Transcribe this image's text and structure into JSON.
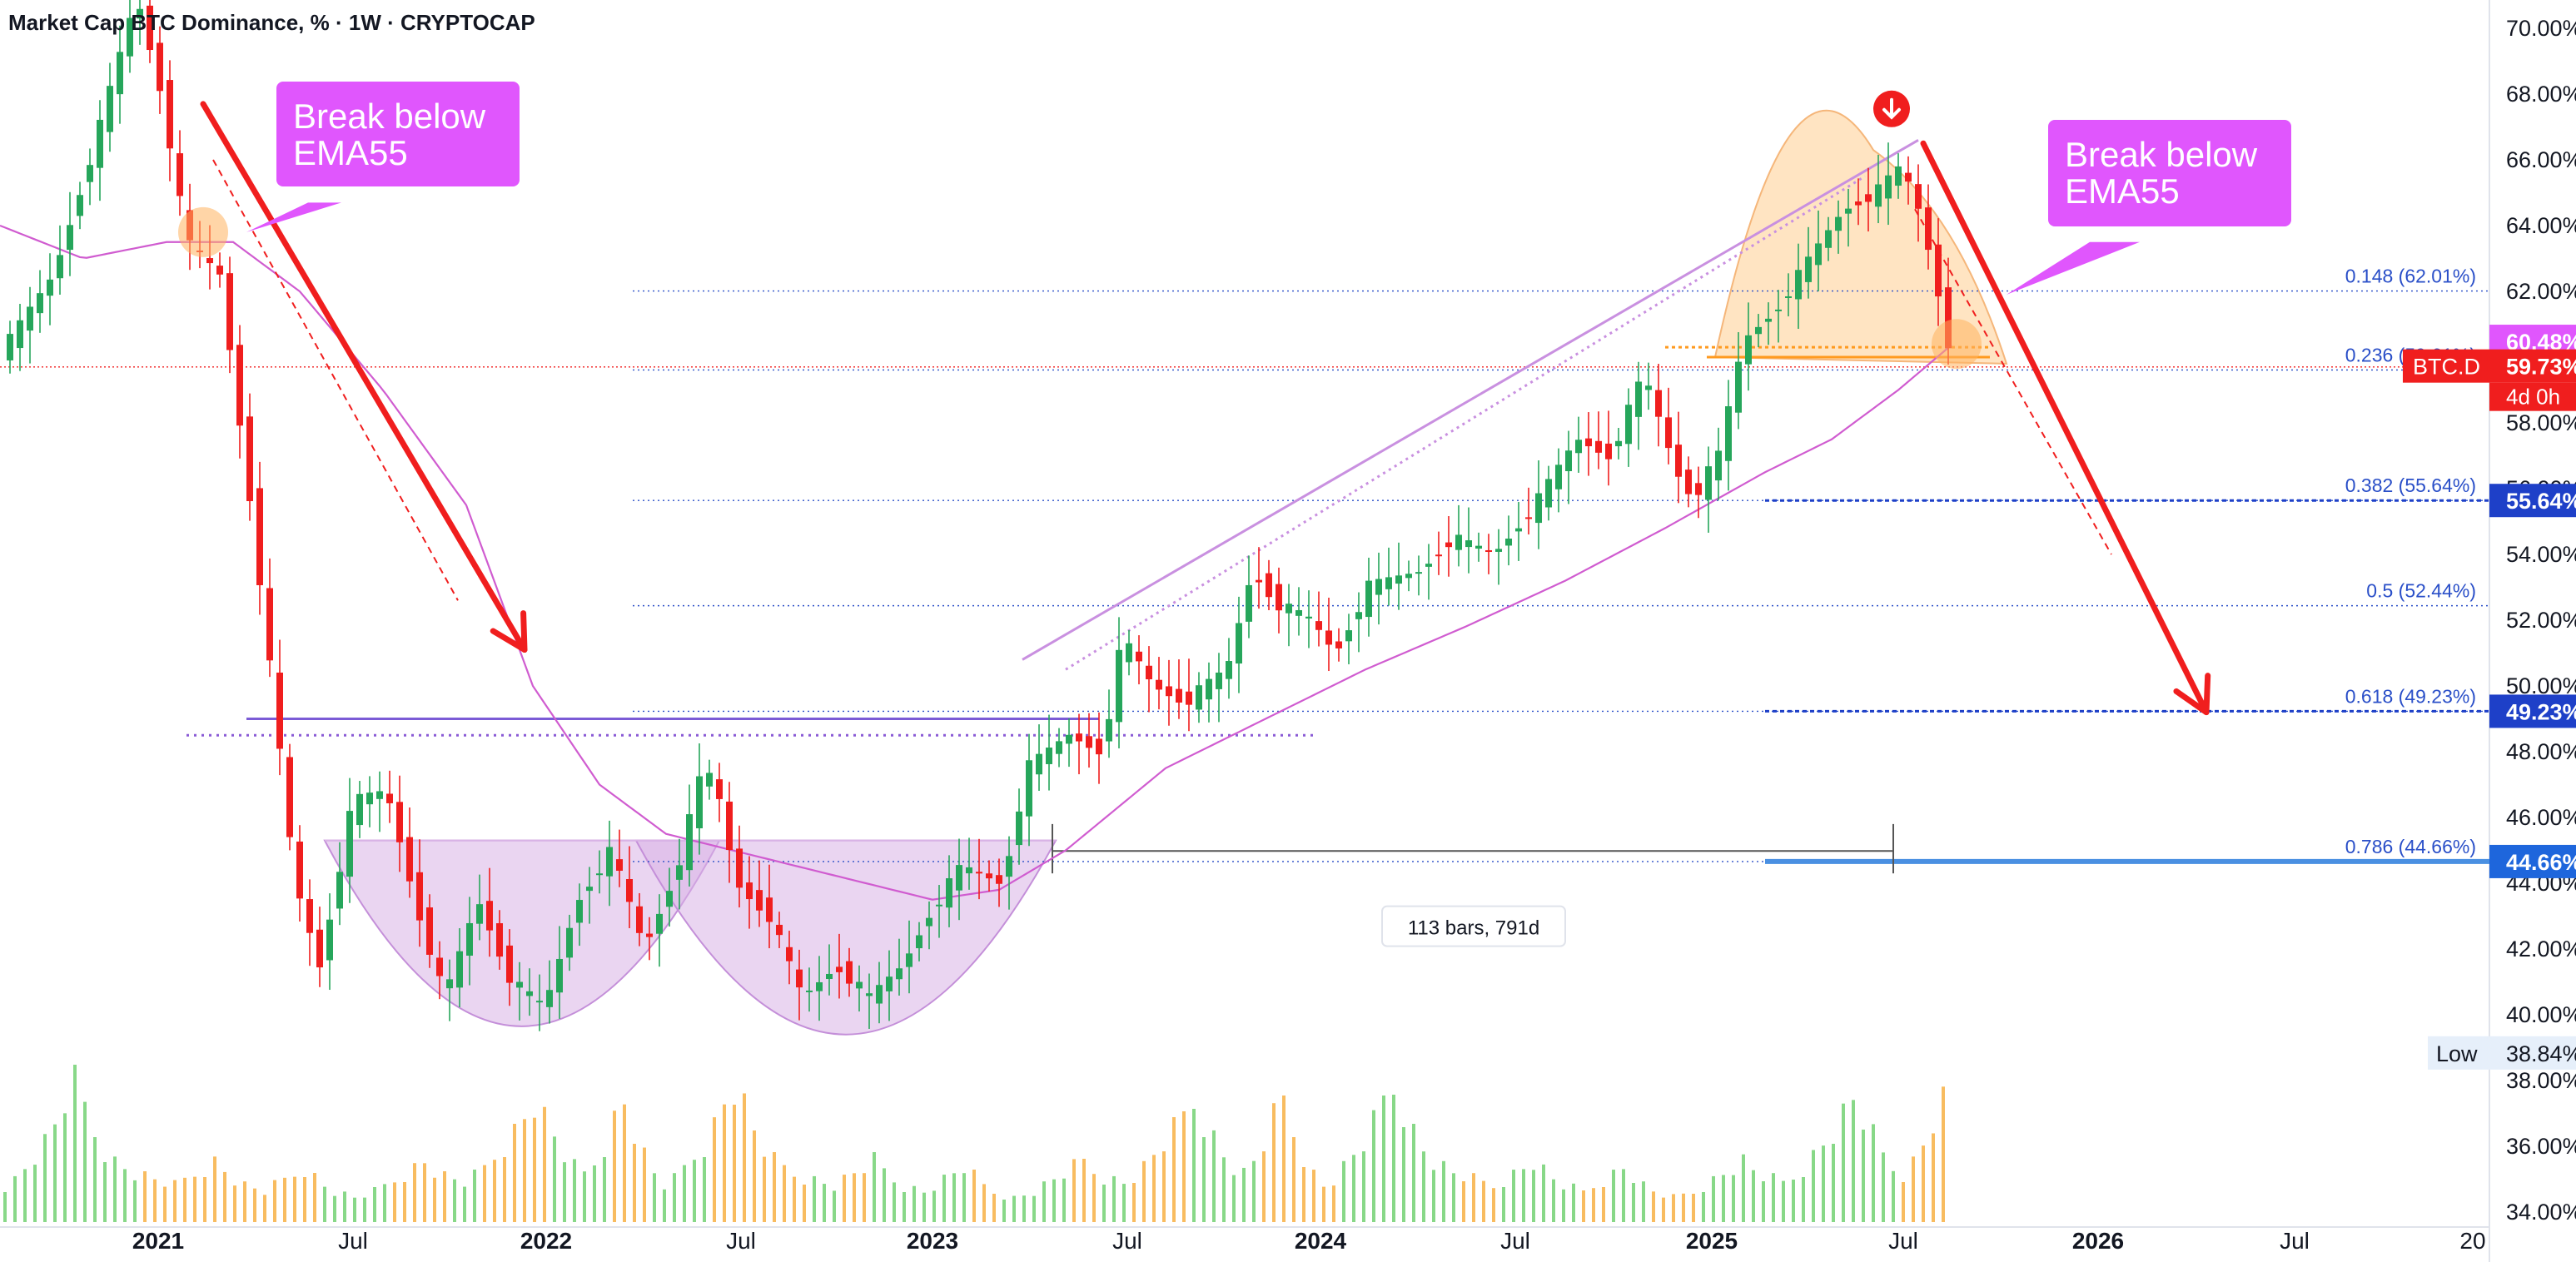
{
  "header": {
    "title": "Market Cap BTC Dominance, % · 1W · CRYPTOCAP"
  },
  "chart_data": {
    "type": "candlestick",
    "symbol": "BTC.D",
    "interval": "1W",
    "y_axis_ticks": [
      "70.00%",
      "68.00%",
      "66.00%",
      "64.00%",
      "62.00%",
      "60.00%",
      "58.00%",
      "56.00%",
      "54.00%",
      "52.00%",
      "50.00%",
      "48.00%",
      "46.00%",
      "44.00%",
      "42.00%",
      "40.00%",
      "38.00%",
      "36.00%",
      "34.00%"
    ],
    "ylim": [
      33.0,
      71.0
    ],
    "x_axis_ticks": [
      "2021",
      "Jul",
      "2022",
      "Jul",
      "2023",
      "Jul",
      "2024",
      "Jul",
      "2025",
      "Jul",
      "2026",
      "Jul",
      "20"
    ],
    "price_path": [
      [
        0,
        60.2
      ],
      [
        30,
        62.5
      ],
      [
        55,
        66.5
      ],
      [
        80,
        71.0
      ],
      [
        95,
        68.0
      ],
      [
        110,
        63.5
      ],
      [
        130,
        62.5
      ],
      [
        150,
        55.0
      ],
      [
        175,
        44.0
      ],
      [
        190,
        41.5
      ],
      [
        210,
        46.5
      ],
      [
        230,
        46.8
      ],
      [
        250,
        43.0
      ],
      [
        265,
        40.5
      ],
      [
        285,
        43.5
      ],
      [
        305,
        41.0
      ],
      [
        325,
        40.2
      ],
      [
        345,
        43.5
      ],
      [
        365,
        45.0
      ],
      [
        385,
        42.0
      ],
      [
        405,
        44.5
      ],
      [
        420,
        47.5
      ],
      [
        428,
        47.0
      ],
      [
        440,
        44.0
      ],
      [
        460,
        43.0
      ],
      [
        480,
        40.5
      ],
      [
        500,
        41.5
      ],
      [
        520,
        40.5
      ],
      [
        540,
        41.5
      ],
      [
        555,
        43.0
      ],
      [
        575,
        44.5
      ],
      [
        600,
        44.0
      ],
      [
        615,
        47.5
      ],
      [
        640,
        48.5
      ],
      [
        660,
        48.0
      ],
      [
        672,
        51.5
      ],
      [
        690,
        50.0
      ],
      [
        710,
        49.5
      ],
      [
        735,
        50.5
      ],
      [
        750,
        53.5
      ],
      [
        765,
        52.5
      ],
      [
        785,
        52.0
      ],
      [
        800,
        51.0
      ],
      [
        820,
        53.0
      ],
      [
        850,
        53.5
      ],
      [
        870,
        54.5
      ],
      [
        895,
        54.0
      ],
      [
        920,
        55.5
      ],
      [
        945,
        57.5
      ],
      [
        965,
        57.0
      ],
      [
        985,
        59.5
      ],
      [
        1005,
        56.5
      ],
      [
        1015,
        55.7
      ],
      [
        1030,
        57.0
      ],
      [
        1045,
        60.5
      ],
      [
        1065,
        61.5
      ],
      [
        1085,
        63.0
      ],
      [
        1105,
        64.5
      ],
      [
        1125,
        65.0
      ],
      [
        1140,
        65.8
      ],
      [
        1150,
        64.5
      ],
      [
        1160,
        62.5
      ],
      [
        1167,
        60.5
      ],
      [
        1175,
        59.7
      ]
    ],
    "ema55_path": [
      [
        0,
        64.0
      ],
      [
        50,
        63.0
      ],
      [
        100,
        63.5
      ],
      [
        140,
        63.5
      ],
      [
        180,
        62.0
      ],
      [
        230,
        59.0
      ],
      [
        280,
        55.5
      ],
      [
        320,
        50.0
      ],
      [
        360,
        47.0
      ],
      [
        400,
        45.5
      ],
      [
        440,
        45.0
      ],
      [
        480,
        44.5
      ],
      [
        520,
        44.0
      ],
      [
        560,
        43.5
      ],
      [
        600,
        43.8
      ],
      [
        640,
        45.0
      ],
      [
        700,
        47.5
      ],
      [
        760,
        49.0
      ],
      [
        820,
        50.5
      ],
      [
        880,
        51.8
      ],
      [
        940,
        53.2
      ],
      [
        1000,
        54.8
      ],
      [
        1060,
        56.5
      ],
      [
        1100,
        57.5
      ],
      [
        1140,
        59.0
      ],
      [
        1175,
        60.5
      ]
    ],
    "volume_profile": [
      12,
      14,
      18,
      22,
      26,
      32,
      40,
      45,
      38,
      30,
      24,
      20,
      18,
      16,
      15,
      14,
      13,
      12,
      14,
      16,
      18,
      20,
      17,
      14,
      12,
      11,
      10,
      12,
      14,
      16,
      18,
      15,
      12,
      10,
      9,
      8,
      9,
      10,
      12,
      14,
      16,
      18,
      20,
      17,
      15,
      14,
      13,
      15,
      18,
      22,
      26,
      30,
      35,
      40,
      34,
      28,
      22,
      18,
      16,
      20,
      26,
      34,
      40,
      30,
      22,
      16
    ],
    "fib_levels": [
      {
        "label": "0.148 (62.01%)",
        "value": 62.01
      },
      {
        "label": "0.236 (59.61%)",
        "value": 59.61
      },
      {
        "label": "0.382 (55.64%)",
        "value": 55.64
      },
      {
        "label": "0.5 (52.44%)",
        "value": 52.44
      },
      {
        "label": "0.618 (49.23%)",
        "value": 49.23
      },
      {
        "label": "0.786 (44.66%)",
        "value": 44.66
      }
    ],
    "price_tags": [
      {
        "text": "60.48%",
        "value": 60.48,
        "color": "#e056fd"
      },
      {
        "text": "59.73%",
        "value": 59.73,
        "color": "#f01e1e"
      },
      {
        "text": "55.64%",
        "value": 55.64,
        "color": "#1e40c8"
      },
      {
        "text": "49.23%",
        "value": 49.23,
        "color": "#1e40c8"
      },
      {
        "text": "44.66%",
        "value": 44.66,
        "color": "#1e66dc"
      }
    ],
    "countdown": "4d 0h",
    "low_tag": {
      "label": "Low",
      "text": "38.84%",
      "value": 38.84
    },
    "annotations": {
      "break_label_1": "Break below\nEMA55",
      "break_label_2": "Break below\nEMA55",
      "measure_label": "113 bars, 791d"
    },
    "colors": {
      "up": "#26a65b",
      "down": "#f01e1e",
      "ema": "#d05cd0",
      "fib": "#2a4fc8",
      "callout": "#e056fd",
      "arrow": "#f01e1e",
      "cup_fill": "#d9b3e6",
      "dome_fill": "#ffd9a8"
    }
  }
}
